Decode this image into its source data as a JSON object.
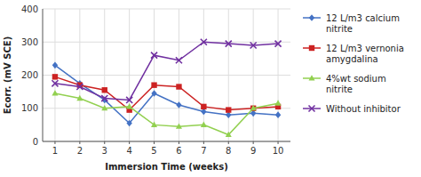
{
  "chart_data": {
    "type": "line",
    "x": [
      1,
      2,
      3,
      4,
      5,
      6,
      7,
      8,
      9,
      10
    ],
    "series": [
      {
        "name": "12 L/m3 calcium\nnitrite",
        "color": "#4472C4",
        "marker": "diamond",
        "values": [
          230,
          175,
          125,
          55,
          145,
          110,
          90,
          80,
          85,
          80
        ]
      },
      {
        "name": "12 L/m3 vernonia\namygdalina",
        "color": "#CC2222",
        "marker": "square",
        "values": [
          195,
          170,
          155,
          95,
          170,
          165,
          105,
          95,
          100,
          105
        ]
      },
      {
        "name": "4%wt sodium\nnitrite",
        "color": "#92D050",
        "marker": "triangle",
        "values": [
          145,
          130,
          100,
          105,
          50,
          45,
          50,
          20,
          100,
          115
        ]
      },
      {
        "name": "Without inhibitor",
        "color": "#7030A0",
        "marker": "x",
        "values": [
          175,
          165,
          130,
          125,
          260,
          245,
          300,
          295,
          290,
          295
        ]
      }
    ],
    "xlabel": "Immersion Time (weeks)",
    "ylabel": "Ecorr. (mV SCE)",
    "xlim": [
      0.5,
      10.5
    ],
    "ylim": [
      0,
      400
    ],
    "xticks": [
      1,
      2,
      3,
      4,
      5,
      6,
      7,
      8,
      9,
      10
    ],
    "yticks": [
      0,
      100,
      200,
      300,
      400
    ],
    "grid": true,
    "legend": "right"
  }
}
